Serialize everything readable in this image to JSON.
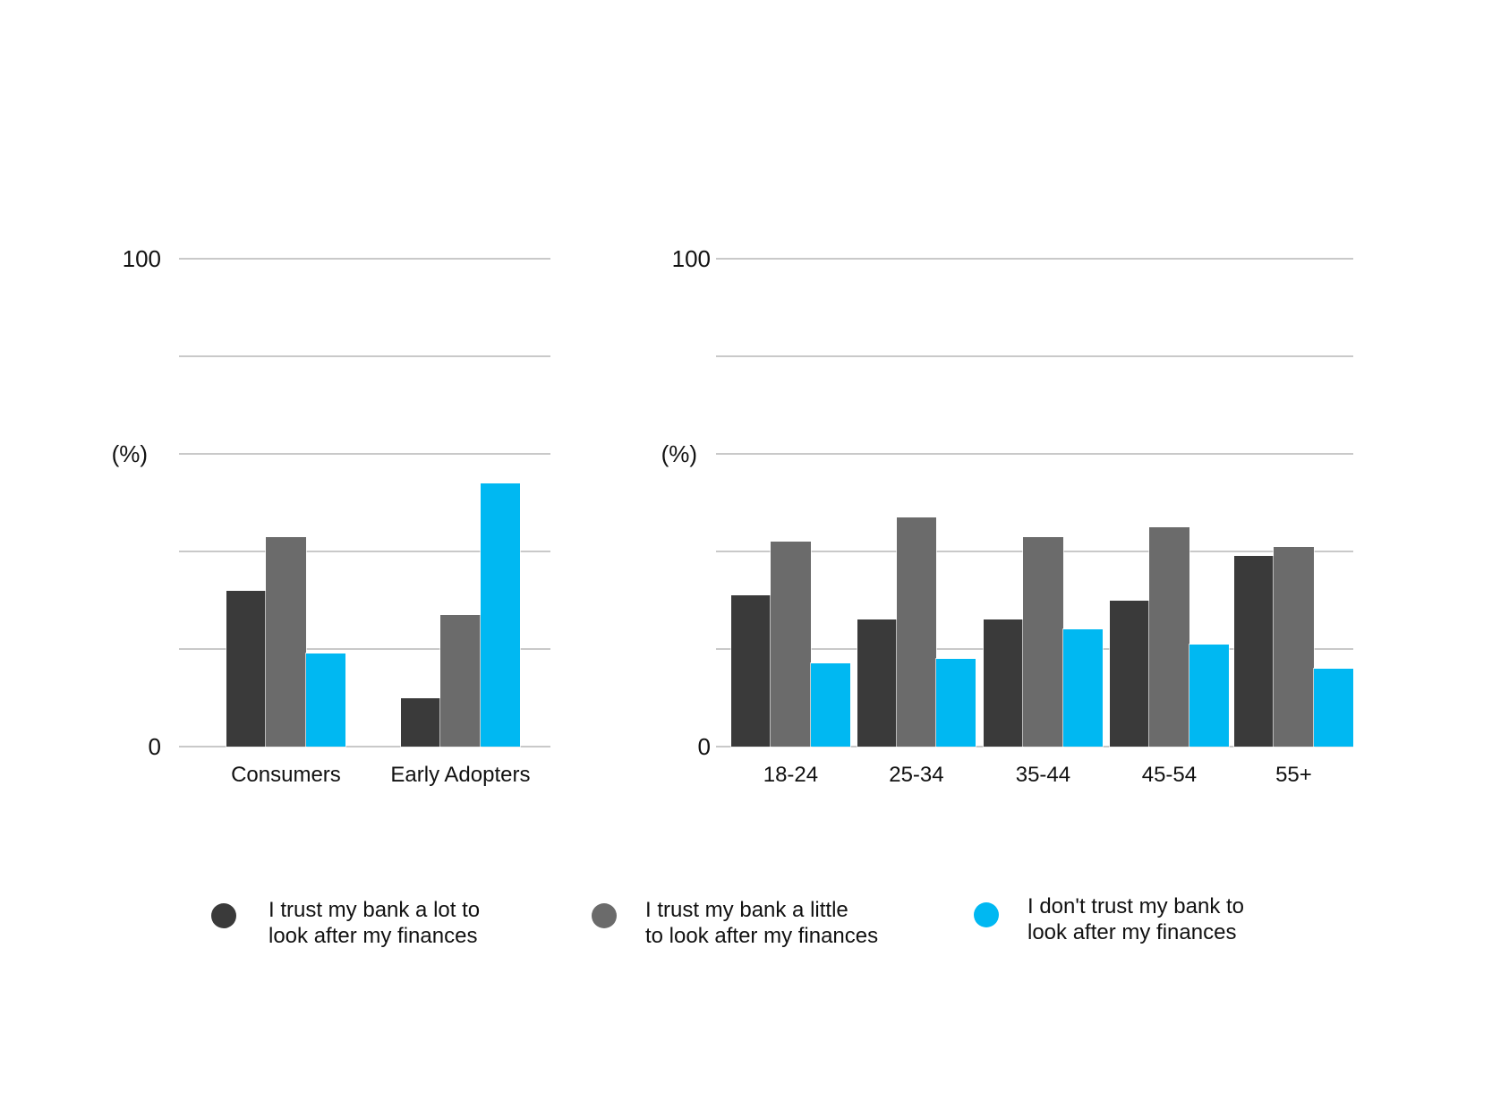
{
  "colors": {
    "dark": "#3a3a3a",
    "gray": "#6b6b6b",
    "cyan": "#00b8f2",
    "gridline": "#c9c9c9",
    "text": "#111111",
    "background": "#ffffff"
  },
  "y_axis": {
    "top_tick": "100",
    "unit_label": "(%)",
    "bottom_tick": "0"
  },
  "chart_data": [
    {
      "type": "bar",
      "title": "",
      "categories": [
        "Consumers",
        "Early Adopters"
      ],
      "series": [
        {
          "name": "I trust my bank a lot to look after my finances",
          "color_key": "dark",
          "values": [
            32,
            10
          ]
        },
        {
          "name": "I trust my bank a little to look after my finances",
          "color_key": "gray",
          "values": [
            43,
            27
          ]
        },
        {
          "name": "I don't trust my bank to look after my finances",
          "color_key": "cyan",
          "values": [
            19,
            54
          ]
        }
      ],
      "xlabel": "",
      "ylabel": "(%)",
      "ylim": [
        0,
        100
      ],
      "gridline_step": 20,
      "grid": true,
      "legend_position": "bottom"
    },
    {
      "type": "bar",
      "title": "",
      "categories": [
        "18-24",
        "25-34",
        "35-44",
        "45-54",
        "55+"
      ],
      "series": [
        {
          "name": "I trust my bank a lot to look after my finances",
          "color_key": "dark",
          "values": [
            31,
            26,
            26,
            30,
            39
          ]
        },
        {
          "name": "I trust my bank a little to look after my finances",
          "color_key": "gray",
          "values": [
            42,
            47,
            43,
            45,
            41
          ]
        },
        {
          "name": "I don't trust my bank to look after my finances",
          "color_key": "cyan",
          "values": [
            17,
            18,
            24,
            21,
            16
          ]
        }
      ],
      "xlabel": "",
      "ylabel": "(%)",
      "ylim": [
        0,
        100
      ],
      "gridline_step": 20,
      "grid": true,
      "legend_position": "bottom"
    }
  ],
  "legend": {
    "items": [
      {
        "color_key": "dark",
        "lines": [
          "I trust my bank a lot to",
          "look after my finances"
        ]
      },
      {
        "color_key": "gray",
        "lines": [
          "I trust my bank a little",
          "to look after my finances"
        ]
      },
      {
        "color_key": "cyan",
        "lines": [
          "I don't trust my bank to",
          "look after my finances"
        ]
      }
    ]
  }
}
